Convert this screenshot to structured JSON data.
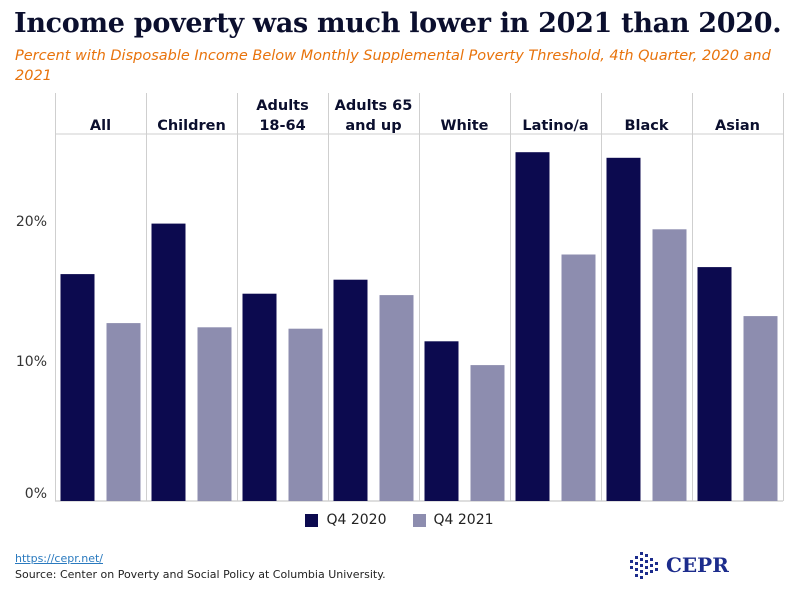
{
  "title": "Income poverty was much lower in 2021 than 2020.",
  "subtitle": "Percent with Disposable Income Below Monthly Supplemental Poverty Threshold, 4th Quarter, 2020 and 2021",
  "colors": {
    "q4_2020": "#0c0a4f",
    "q4_2021": "#8d8daf",
    "subtitle": "#e8730c",
    "logo": "#1c2c8c"
  },
  "chart_data": {
    "type": "bar",
    "categories": [
      [
        "All"
      ],
      [
        "Children"
      ],
      [
        "Adults",
        "18-64"
      ],
      [
        "Adults 65",
        "and up"
      ],
      [
        "White"
      ],
      [
        "Latino/a"
      ],
      [
        "Black"
      ],
      [
        "Asian"
      ]
    ],
    "series": [
      {
        "name": "Q4 2020",
        "values": [
          16.2,
          19.8,
          14.8,
          15.8,
          11.4,
          24.9,
          24.5,
          16.7
        ]
      },
      {
        "name": "Q4 2021",
        "values": [
          12.7,
          12.4,
          12.3,
          14.7,
          9.7,
          17.6,
          19.4,
          13.2
        ]
      }
    ],
    "yticks": [
      "0%",
      "10%",
      "20%"
    ],
    "ytick_values": [
      0,
      10,
      20
    ],
    "ylim": [
      0,
      26.2
    ],
    "legend_position": "bottom-center",
    "grid": false
  },
  "footer": {
    "link": "https://cepr.net/",
    "source": "Source: Center on Poverty and Social Policy at Columbia University.",
    "logo_text": "CEPR"
  }
}
